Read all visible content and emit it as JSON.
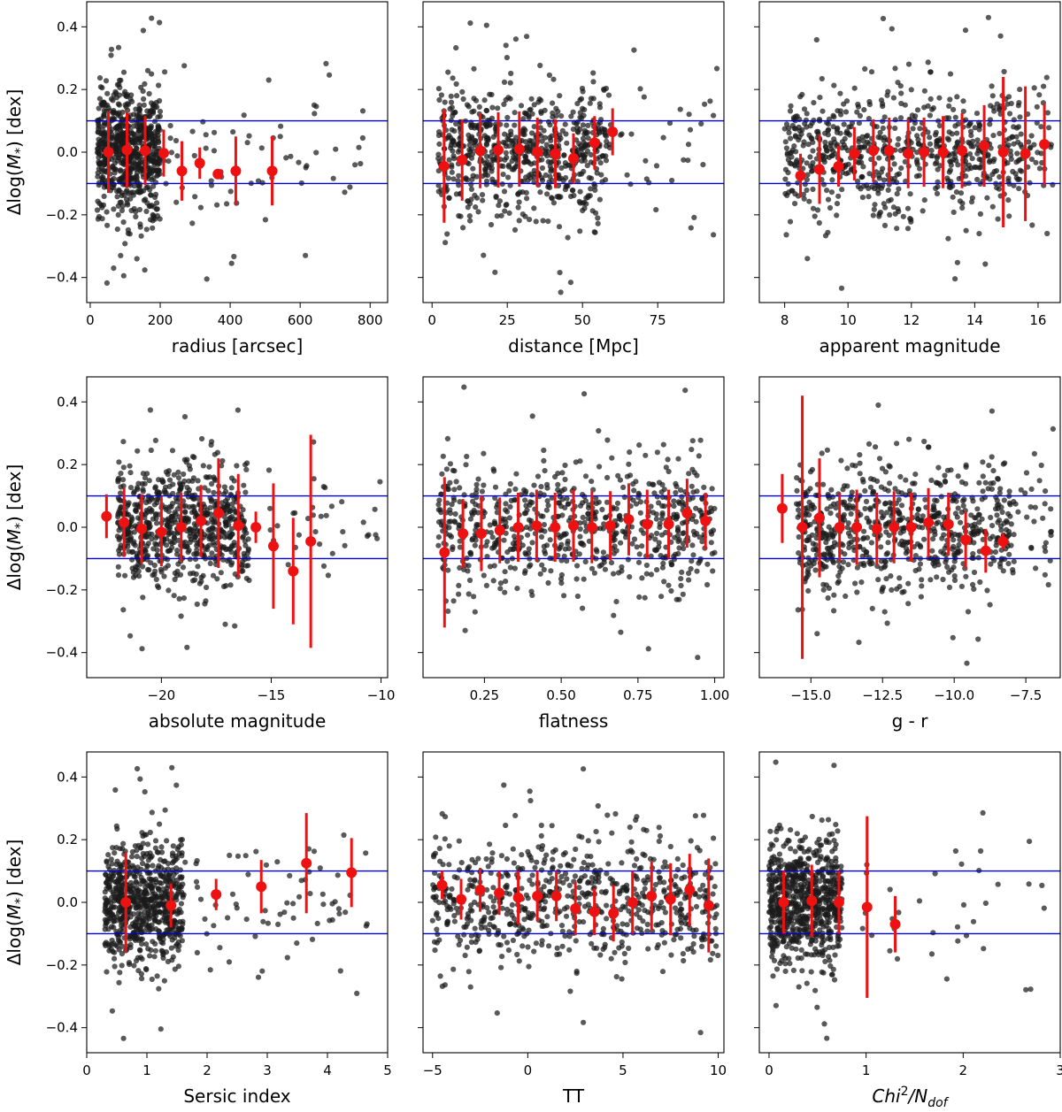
{
  "figure": {
    "ylabel": "Δlog(M*) [dex]",
    "band_lines": [
      0.1,
      -0.1
    ],
    "colors": {
      "points": "#1a1a1a",
      "medians": "#ee1111",
      "bands": "#0000cc",
      "frame": "#000000"
    }
  },
  "chart_data": [
    {
      "type": "scatter",
      "title": "",
      "xlabel": "radius [arcsec]",
      "ylabel": "Δlog(M*) [dex]",
      "xlim": [
        -10,
        850
      ],
      "ylim": [
        -0.48,
        0.48
      ],
      "xticks": [
        0,
        200,
        400,
        600,
        800
      ],
      "xtick_labels": [
        "0",
        "200",
        "400",
        "600",
        "800"
      ],
      "yticks": [
        -0.4,
        -0.2,
        0.0,
        0.2,
        0.4
      ],
      "ytick_labels": [
        "−0.4",
        "−0.2",
        "0.0",
        "0.2",
        "0.4"
      ],
      "scatter_profile": {
        "x_range": [
          20,
          200
        ],
        "y_sd": 0.12,
        "sparse_x": [
          [
            210,
            420
          ],
          [
            420,
            800
          ]
        ]
      },
      "binned_medians": [
        {
          "x": 52,
          "y": 0.0,
          "err": 0.13
        },
        {
          "x": 105,
          "y": 0.007,
          "err": 0.12
        },
        {
          "x": 157,
          "y": 0.005,
          "err": 0.11
        },
        {
          "x": 210,
          "y": -0.003,
          "err": 0.075
        },
        {
          "x": 262,
          "y": -0.06,
          "err": 0.095
        },
        {
          "x": 313,
          "y": -0.035,
          "err": 0.05
        },
        {
          "x": 365,
          "y": -0.07,
          "err": 0.015
        },
        {
          "x": 416,
          "y": -0.06,
          "err": 0.11
        },
        {
          "x": 520,
          "y": -0.06,
          "err": 0.11
        }
      ]
    },
    {
      "type": "scatter",
      "title": "",
      "xlabel": "distance [Mpc]",
      "ylabel": "",
      "xlim": [
        -3,
        97
      ],
      "ylim": [
        -0.48,
        0.48
      ],
      "xticks": [
        0,
        25,
        50,
        75
      ],
      "xtick_labels": [
        "0",
        "25",
        "50",
        "75"
      ],
      "yticks": [
        -0.4,
        -0.2,
        0.0,
        0.2,
        0.4
      ],
      "ytick_labels": [],
      "scatter_profile": {
        "x_range": [
          2,
          58
        ],
        "y_sd": 0.12,
        "sparse_x": [
          [
            58,
            95
          ]
        ]
      },
      "binned_medians": [
        {
          "x": 4,
          "y": -0.045,
          "err": 0.18
        },
        {
          "x": 10,
          "y": -0.025,
          "err": 0.13
        },
        {
          "x": 16,
          "y": 0.005,
          "err": 0.12
        },
        {
          "x": 22,
          "y": 0.007,
          "err": 0.12
        },
        {
          "x": 29,
          "y": 0.01,
          "err": 0.12
        },
        {
          "x": 35,
          "y": 0.0,
          "err": 0.11
        },
        {
          "x": 41,
          "y": -0.005,
          "err": 0.11
        },
        {
          "x": 47,
          "y": -0.02,
          "err": 0.08
        },
        {
          "x": 54,
          "y": 0.03,
          "err": 0.085
        },
        {
          "x": 60,
          "y": 0.065,
          "err": 0.075
        }
      ]
    },
    {
      "type": "scatter",
      "title": "",
      "xlabel": "apparent magnitude",
      "ylabel": "",
      "xlim": [
        7.2,
        16.7
      ],
      "ylim": [
        -0.48,
        0.48
      ],
      "xticks": [
        8,
        10,
        12,
        14,
        16
      ],
      "xtick_labels": [
        "8",
        "10",
        "12",
        "14",
        "16"
      ],
      "yticks": [
        -0.4,
        -0.2,
        0.0,
        0.2,
        0.4
      ],
      "ytick_labels": [],
      "scatter_profile": {
        "x_range": [
          8,
          15.5
        ],
        "y_sd": 0.12,
        "sparse_x": [
          [
            15.5,
            16.5
          ]
        ]
      },
      "binned_medians": [
        {
          "x": 8.5,
          "y": -0.075,
          "err": 0.07
        },
        {
          "x": 9.1,
          "y": -0.055,
          "err": 0.11
        },
        {
          "x": 9.7,
          "y": -0.045,
          "err": 0.065
        },
        {
          "x": 10.2,
          "y": -0.005,
          "err": 0.085
        },
        {
          "x": 10.8,
          "y": 0.005,
          "err": 0.1
        },
        {
          "x": 11.3,
          "y": 0.005,
          "err": 0.105
        },
        {
          "x": 11.9,
          "y": -0.005,
          "err": 0.11
        },
        {
          "x": 12.4,
          "y": 0.0,
          "err": 0.11
        },
        {
          "x": 13.0,
          "y": 0.0,
          "err": 0.115
        },
        {
          "x": 13.6,
          "y": 0.005,
          "err": 0.12
        },
        {
          "x": 14.3,
          "y": 0.02,
          "err": 0.13
        },
        {
          "x": 14.9,
          "y": 0.0,
          "err": 0.24
        },
        {
          "x": 15.6,
          "y": -0.005,
          "err": 0.215
        },
        {
          "x": 16.2,
          "y": 0.025,
          "err": 0.13
        }
      ]
    },
    {
      "type": "scatter",
      "title": "",
      "xlabel": "absolute magnitude",
      "ylabel": "Δlog(M*) [dex]",
      "xlim": [
        -23.4,
        -9.7
      ],
      "ylim": [
        -0.48,
        0.48
      ],
      "xticks": [
        -20,
        -15,
        -10
      ],
      "xtick_labels": [
        "−20",
        "−15",
        "−10"
      ],
      "yticks": [
        -0.4,
        -0.2,
        0.0,
        0.2,
        0.4
      ],
      "ytick_labels": [
        "−0.4",
        "−0.2",
        "0.0",
        "0.2",
        "0.4"
      ],
      "scatter_profile": {
        "x_range": [
          -22,
          -16
        ],
        "y_sd": 0.12,
        "sparse_x": [
          [
            -16,
            -10
          ]
        ]
      },
      "binned_medians": [
        {
          "x": -22.5,
          "y": 0.035,
          "err": 0.07
        },
        {
          "x": -21.7,
          "y": 0.015,
          "err": 0.11
        },
        {
          "x": -20.9,
          "y": -0.005,
          "err": 0.11
        },
        {
          "x": -20.0,
          "y": -0.015,
          "err": 0.11
        },
        {
          "x": -19.1,
          "y": 0.0,
          "err": 0.11
        },
        {
          "x": -18.2,
          "y": 0.02,
          "err": 0.115
        },
        {
          "x": -17.4,
          "y": 0.045,
          "err": 0.175
        },
        {
          "x": -16.5,
          "y": 0.005,
          "err": 0.165
        },
        {
          "x": -15.7,
          "y": 0.0,
          "err": 0.05
        },
        {
          "x": -14.9,
          "y": -0.06,
          "err": 0.2
        },
        {
          "x": -14.0,
          "y": -0.14,
          "err": 0.17
        },
        {
          "x": -13.2,
          "y": -0.045,
          "err": 0.34
        }
      ]
    },
    {
      "type": "scatter",
      "title": "",
      "xlabel": "flatness",
      "ylabel": "",
      "xlim": [
        0.05,
        1.03
      ],
      "ylim": [
        -0.48,
        0.48
      ],
      "xticks": [
        0.25,
        0.5,
        0.75,
        1.0
      ],
      "xtick_labels": [
        "0.25",
        "0.50",
        "0.75",
        "1.00"
      ],
      "yticks": [
        -0.4,
        -0.2,
        0.0,
        0.2,
        0.4
      ],
      "ytick_labels": [],
      "scatter_profile": {
        "x_range": [
          0.1,
          1.0
        ],
        "y_sd": 0.12,
        "sparse_x": []
      },
      "binned_medians": [
        {
          "x": 0.12,
          "y": -0.08,
          "err": 0.24
        },
        {
          "x": 0.18,
          "y": -0.02,
          "err": 0.11
        },
        {
          "x": 0.24,
          "y": -0.02,
          "err": 0.12
        },
        {
          "x": 0.3,
          "y": -0.01,
          "err": 0.105
        },
        {
          "x": 0.36,
          "y": 0.0,
          "err": 0.11
        },
        {
          "x": 0.42,
          "y": 0.005,
          "err": 0.115
        },
        {
          "x": 0.48,
          "y": 0.0,
          "err": 0.11
        },
        {
          "x": 0.54,
          "y": 0.005,
          "err": 0.115
        },
        {
          "x": 0.6,
          "y": 0.0,
          "err": 0.115
        },
        {
          "x": 0.66,
          "y": 0.005,
          "err": 0.11
        },
        {
          "x": 0.72,
          "y": 0.025,
          "err": 0.115
        },
        {
          "x": 0.78,
          "y": 0.01,
          "err": 0.11
        },
        {
          "x": 0.85,
          "y": 0.01,
          "err": 0.11
        },
        {
          "x": 0.91,
          "y": 0.045,
          "err": 0.11
        },
        {
          "x": 0.97,
          "y": 0.02,
          "err": 0.09
        }
      ]
    },
    {
      "type": "scatter",
      "title": "",
      "xlabel": "g - r",
      "ylabel": "",
      "xlim": [
        -16.8,
        -6.3
      ],
      "ylim": [
        -0.48,
        0.48
      ],
      "xticks": [
        -15.0,
        -12.5,
        -10.0,
        -7.5
      ],
      "xtick_labels": [
        "−15.0",
        "−12.5",
        "−10.0",
        "−7.5"
      ],
      "yticks": [
        -0.4,
        -0.2,
        0.0,
        0.2,
        0.4
      ],
      "ytick_labels": [],
      "scatter_profile": {
        "x_range": [
          -15.5,
          -8
        ],
        "y_sd": 0.12,
        "sparse_x": [
          [
            -8,
            -6.5
          ]
        ]
      },
      "binned_medians": [
        {
          "x": -16.0,
          "y": 0.06,
          "err": 0.11
        },
        {
          "x": -15.3,
          "y": 0.0,
          "err": 0.42
        },
        {
          "x": -14.7,
          "y": 0.03,
          "err": 0.19
        },
        {
          "x": -14.0,
          "y": 0.0,
          "err": 0.11
        },
        {
          "x": -13.4,
          "y": 0.0,
          "err": 0.12
        },
        {
          "x": -12.7,
          "y": -0.005,
          "err": 0.115
        },
        {
          "x": -12.1,
          "y": 0.0,
          "err": 0.115
        },
        {
          "x": -11.5,
          "y": 0.0,
          "err": 0.11
        },
        {
          "x": -10.9,
          "y": 0.015,
          "err": 0.11
        },
        {
          "x": -10.2,
          "y": 0.01,
          "err": 0.1
        },
        {
          "x": -9.6,
          "y": -0.04,
          "err": 0.09
        },
        {
          "x": -8.9,
          "y": -0.075,
          "err": 0.07
        },
        {
          "x": -8.3,
          "y": -0.045,
          "err": 0.025
        }
      ]
    },
    {
      "type": "scatter",
      "title": "",
      "xlabel": "Sersic index",
      "ylabel": "Δlog(M*) [dex]",
      "xlim": [
        0,
        5
      ],
      "ylim": [
        -0.48,
        0.48
      ],
      "xticks": [
        0,
        1,
        2,
        3,
        4,
        5
      ],
      "xtick_labels": [
        "0",
        "1",
        "2",
        "3",
        "4",
        "5"
      ],
      "yticks": [
        -0.4,
        -0.2,
        0.0,
        0.2,
        0.4
      ],
      "ytick_labels": [
        "−0.4",
        "−0.2",
        "0.0",
        "0.2",
        "0.4"
      ],
      "scatter_profile": {
        "x_range": [
          0.3,
          1.6
        ],
        "y_sd": 0.12,
        "sparse_x": [
          [
            1.6,
            3.2
          ],
          [
            3.2,
            4.7
          ]
        ]
      },
      "binned_medians": [
        {
          "x": 0.65,
          "y": 0.0,
          "err": 0.16
        },
        {
          "x": 1.4,
          "y": -0.01,
          "err": 0.07
        },
        {
          "x": 2.15,
          "y": 0.025,
          "err": 0.05
        },
        {
          "x": 2.9,
          "y": 0.05,
          "err": 0.085
        },
        {
          "x": 3.65,
          "y": 0.125,
          "err": 0.16
        },
        {
          "x": 4.4,
          "y": 0.095,
          "err": 0.11
        }
      ]
    },
    {
      "type": "scatter",
      "title": "",
      "xlabel": "TT",
      "ylabel": "",
      "xlim": [
        -5.5,
        10.3
      ],
      "ylim": [
        -0.48,
        0.48
      ],
      "xticks": [
        -5,
        0,
        5,
        10
      ],
      "xtick_labels": [
        "−5",
        "0",
        "5",
        "10"
      ],
      "yticks": [
        -0.4,
        -0.2,
        0.0,
        0.2,
        0.4
      ],
      "ytick_labels": [],
      "scatter_profile": {
        "x_range": [
          -5,
          10
        ],
        "y_sd": 0.12,
        "sparse_x": []
      },
      "binned_medians": [
        {
          "x": -4.5,
          "y": 0.055,
          "err": 0.045
        },
        {
          "x": -3.5,
          "y": 0.01,
          "err": 0.065
        },
        {
          "x": -2.5,
          "y": 0.04,
          "err": 0.07
        },
        {
          "x": -1.5,
          "y": 0.03,
          "err": 0.07
        },
        {
          "x": -0.5,
          "y": 0.015,
          "err": 0.085
        },
        {
          "x": 0.5,
          "y": 0.02,
          "err": 0.08
        },
        {
          "x": 1.5,
          "y": 0.02,
          "err": 0.08
        },
        {
          "x": 2.5,
          "y": -0.02,
          "err": 0.085
        },
        {
          "x": 3.5,
          "y": -0.03,
          "err": 0.075
        },
        {
          "x": 4.5,
          "y": -0.035,
          "err": 0.09
        },
        {
          "x": 5.5,
          "y": 0.0,
          "err": 0.1
        },
        {
          "x": 6.5,
          "y": 0.02,
          "err": 0.11
        },
        {
          "x": 7.5,
          "y": 0.01,
          "err": 0.115
        },
        {
          "x": 8.5,
          "y": 0.04,
          "err": 0.115
        },
        {
          "x": 9.5,
          "y": -0.01,
          "err": 0.15
        }
      ]
    },
    {
      "type": "scatter",
      "title": "",
      "xlabel": "Chi²/N_dof",
      "ylabel": "",
      "xlim": [
        -0.1,
        3.0
      ],
      "ylim": [
        -0.48,
        0.48
      ],
      "xticks": [
        0,
        1,
        2,
        3
      ],
      "xtick_labels": [
        "0",
        "1",
        "2",
        "3"
      ],
      "yticks": [
        -0.4,
        -0.2,
        0.0,
        0.2,
        0.4
      ],
      "ytick_labels": [],
      "scatter_profile": {
        "x_range": [
          0.0,
          0.75
        ],
        "y_sd": 0.12,
        "sparse_x": [
          [
            0.8,
            2.9
          ]
        ]
      },
      "binned_medians": [
        {
          "x": 0.15,
          "y": 0.0,
          "err": 0.1
        },
        {
          "x": 0.44,
          "y": 0.005,
          "err": 0.115
        },
        {
          "x": 0.72,
          "y": 0.0,
          "err": 0.1
        },
        {
          "x": 1.01,
          "y": -0.015,
          "err": 0.29
        },
        {
          "x": 1.3,
          "y": -0.07,
          "err": 0.09
        }
      ]
    }
  ]
}
